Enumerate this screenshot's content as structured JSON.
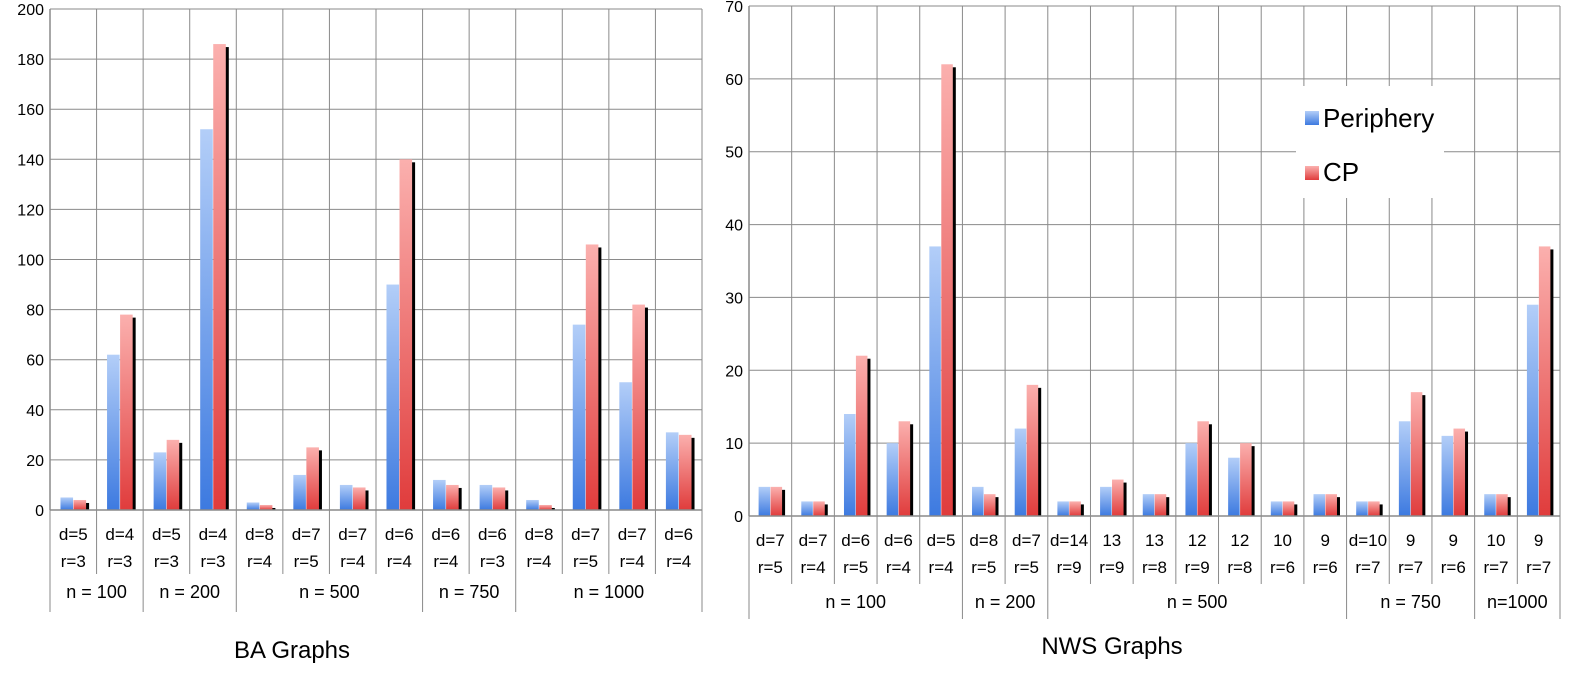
{
  "chart_data": [
    {
      "type": "bar",
      "title": "BA Graphs",
      "ylim": [
        0,
        200
      ],
      "yticks": [
        "0",
        "20",
        "40",
        "60",
        "80",
        "100",
        "120",
        "140",
        "160",
        "180",
        "200"
      ],
      "series": [
        {
          "name": "Periphery",
          "values": [
            5,
            62,
            23,
            152,
            3,
            14,
            10,
            90,
            12,
            10,
            4,
            74,
            51,
            31
          ]
        },
        {
          "name": "CP",
          "values": [
            4,
            78,
            28,
            186,
            2,
            25,
            9,
            140,
            10,
            9,
            2,
            106,
            82,
            30
          ]
        }
      ],
      "categories": [
        {
          "line1": "d=5",
          "line2": "r=3"
        },
        {
          "line1": "d=4",
          "line2": "r=3"
        },
        {
          "line1": "d=5",
          "line2": "r=3"
        },
        {
          "line1": "d=4",
          "line2": "r=3"
        },
        {
          "line1": "d=8",
          "line2": "r=4"
        },
        {
          "line1": "d=7",
          "line2": "r=5"
        },
        {
          "line1": "d=7",
          "line2": "r=4"
        },
        {
          "line1": "d=6",
          "line2": "r=4"
        },
        {
          "line1": "d=6",
          "line2": "r=4"
        },
        {
          "line1": "d=6",
          "line2": "r=3"
        },
        {
          "line1": "d=8",
          "line2": "r=4"
        },
        {
          "line1": "d=7",
          "line2": "r=5"
        },
        {
          "line1": "d=7",
          "line2": "r=4"
        },
        {
          "line1": "d=6",
          "line2": "r=4"
        }
      ],
      "groups": [
        {
          "label": "n = 100",
          "count": 2
        },
        {
          "label": "n = 200",
          "count": 2
        },
        {
          "label": "n = 500",
          "count": 4
        },
        {
          "label": "n = 750",
          "count": 2
        },
        {
          "label": "n = 1000",
          "count": 4
        }
      ]
    },
    {
      "type": "bar",
      "title": "NWS Graphs",
      "ylim": [
        0,
        70
      ],
      "yticks": [
        "0",
        "10",
        "20",
        "30",
        "40",
        "50",
        "60",
        "70"
      ],
      "series": [
        {
          "name": "Periphery",
          "values": [
            4,
            2,
            14,
            10,
            37,
            4,
            12,
            2,
            4,
            3,
            10,
            8,
            2,
            3,
            2,
            13,
            11,
            3,
            29
          ]
        },
        {
          "name": "CP",
          "values": [
            4,
            2,
            22,
            13,
            62,
            3,
            18,
            2,
            5,
            3,
            13,
            10,
            2,
            3,
            2,
            17,
            12,
            3,
            37
          ]
        }
      ],
      "categories": [
        {
          "line1": "d=7",
          "line2": "r=5"
        },
        {
          "line1": "d=7",
          "line2": "r=4"
        },
        {
          "line1": "d=6",
          "line2": "r=5"
        },
        {
          "line1": "d=6",
          "line2": "r=4"
        },
        {
          "line1": "d=5",
          "line2": "r=4"
        },
        {
          "line1": "d=8",
          "line2": "r=5"
        },
        {
          "line1": "d=7",
          "line2": "r=5"
        },
        {
          "line1": "d=14",
          "line2": "r=9"
        },
        {
          "line1": "13",
          "line2": "r=9"
        },
        {
          "line1": "13",
          "line2": "r=8"
        },
        {
          "line1": "12",
          "line2": "r=9"
        },
        {
          "line1": "12",
          "line2": "r=8"
        },
        {
          "line1": "10",
          "line2": "r=6"
        },
        {
          "line1": "9",
          "line2": "r=6"
        },
        {
          "line1": "d=10",
          "line2": "r=7"
        },
        {
          "line1": "9",
          "line2": "r=7"
        },
        {
          "line1": "9",
          "line2": "r=6"
        },
        {
          "line1": "10",
          "line2": "r=7"
        },
        {
          "line1": "9",
          "line2": "r=7"
        }
      ],
      "groups": [
        {
          "label": "n = 100",
          "count": 5
        },
        {
          "label": "n = 200",
          "count": 2
        },
        {
          "label": "n = 500",
          "count": 7
        },
        {
          "label": "n = 750",
          "count": 3
        },
        {
          "label": "n=1000",
          "count": 2
        }
      ],
      "legend": {
        "placement": "top-right",
        "entries": [
          "Periphery",
          "CP"
        ]
      }
    }
  ],
  "colors": {
    "periphery_light": "#b3cef8",
    "periphery_dark": "#3d7ae0",
    "cp_light": "#fbb0ae",
    "cp_dark": "#e03c3c",
    "grid": "#8a8a8a",
    "shadow": "#000000"
  }
}
